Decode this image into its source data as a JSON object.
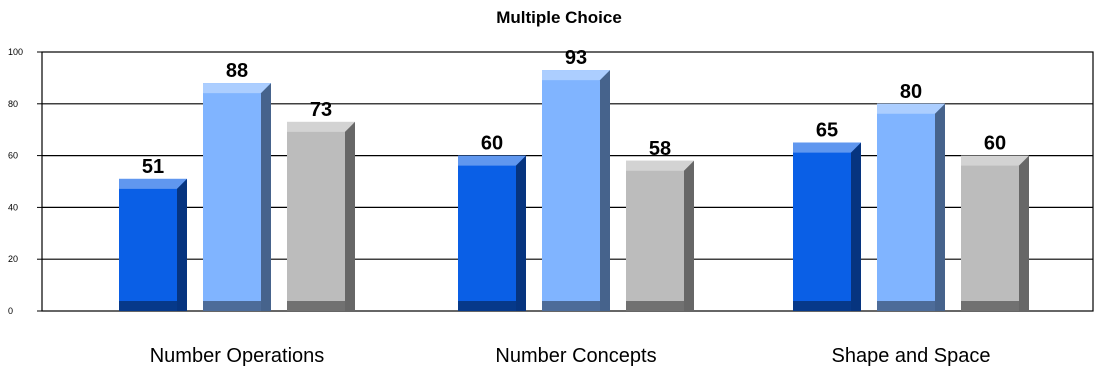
{
  "chart_data": {
    "type": "bar",
    "title": "Multiple Choice",
    "categories": [
      "Number Operations",
      "Number Concepts",
      "Shape and Space"
    ],
    "series": [
      {
        "values": [
          51,
          60,
          65
        ],
        "color": "#0a5fe6"
      },
      {
        "values": [
          88,
          93,
          80
        ],
        "color": "#80b4ff"
      },
      {
        "values": [
          73,
          58,
          60
        ],
        "color": "#bcbcbc"
      }
    ],
    "ylim": [
      0,
      100
    ],
    "yticks": [
      0,
      20,
      40,
      60,
      80,
      100
    ],
    "grid": true,
    "style": "3d"
  }
}
